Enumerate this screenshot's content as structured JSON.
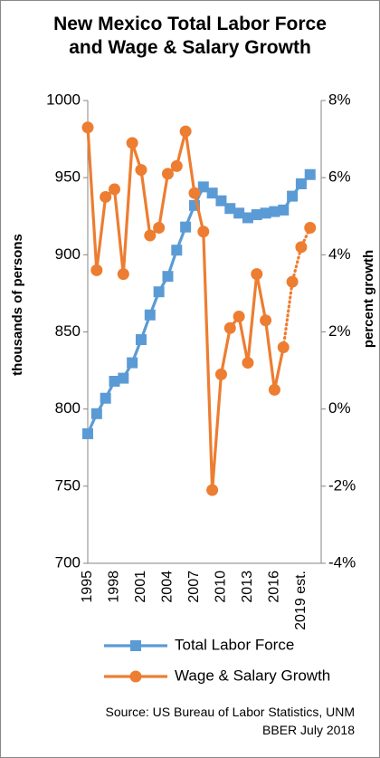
{
  "chart_data": {
    "type": "line",
    "title": "New Mexico Total Labor Force and Wage & Salary Growth",
    "ylabel": "thousands of persons",
    "y2label": "percent growth",
    "source": [
      "Source: US Bureau of Labor Statistics, UNM",
      "BBER July 2018"
    ],
    "categories": [
      "1995",
      null,
      null,
      "1998",
      null,
      null,
      "2001",
      null,
      null,
      "2004",
      null,
      null,
      "2007",
      null,
      null,
      "2010",
      null,
      null,
      "2013",
      null,
      null,
      "2016",
      null,
      null,
      "2019 est.",
      null
    ],
    "ylim": [
      700,
      1000
    ],
    "yticks": [
      700,
      750,
      800,
      850,
      900,
      950,
      1000
    ],
    "y2lim": [
      -4,
      8
    ],
    "y2ticks": [
      {
        "value": -4,
        "label": "-4%"
      },
      {
        "value": -2,
        "label": "-2%"
      },
      {
        "value": 0,
        "label": "0%"
      },
      {
        "value": 2,
        "label": "2%"
      },
      {
        "value": 4,
        "label": "4%"
      },
      {
        "value": 6,
        "label": "6%"
      },
      {
        "value": 8,
        "label": "8%"
      }
    ],
    "grid": false,
    "series": [
      {
        "name": "Total Labor Force",
        "color": "#5b9bd5",
        "marker": "square",
        "axis": "y",
        "values": [
          784,
          797,
          807,
          818,
          820,
          830,
          845,
          861,
          876,
          886,
          903,
          918,
          932,
          944,
          940,
          935,
          930,
          927,
          924,
          926,
          927,
          928,
          929,
          938,
          946,
          952
        ]
      },
      {
        "name": "Wage & Salary Growth",
        "color": "#ed7d31",
        "marker": "circle",
        "axis": "y2",
        "dotted_from_index": 22,
        "values": [
          7.3,
          3.6,
          5.5,
          5.7,
          3.5,
          6.9,
          6.2,
          4.5,
          4.7,
          6.1,
          6.3,
          7.2,
          5.6,
          4.6,
          -2.1,
          0.9,
          2.1,
          2.4,
          1.2,
          3.5,
          2.3,
          0.5,
          1.6,
          3.3,
          4.2,
          4.7
        ]
      }
    ]
  }
}
